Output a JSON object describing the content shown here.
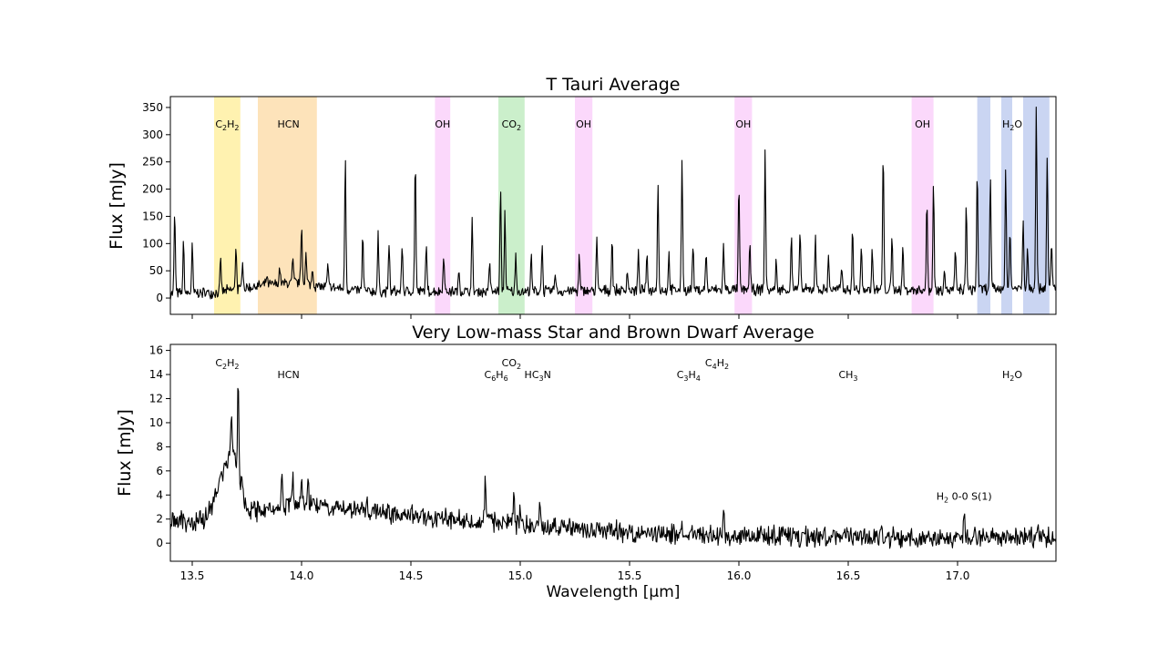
{
  "chart_data": [
    {
      "type": "line",
      "title": "T Tauri Average",
      "xlabel": "",
      "ylabel": "Flux [mJy]",
      "xlim": [
        13.4,
        17.45
      ],
      "ylim": [
        -30,
        370
      ],
      "yticks": [
        0,
        50,
        100,
        150,
        200,
        250,
        300,
        350
      ],
      "grid": false,
      "series": [
        {
          "color": "#000000",
          "baseline": [
            [
              13.4,
              8
            ],
            [
              13.6,
              10
            ],
            [
              13.7,
              15
            ],
            [
              13.8,
              22
            ],
            [
              14.0,
              30
            ],
            [
              14.07,
              22
            ],
            [
              14.3,
              12
            ],
            [
              15.0,
              12
            ],
            [
              15.5,
              14
            ],
            [
              16.0,
              15
            ],
            [
              16.5,
              15
            ],
            [
              17.0,
              15
            ],
            [
              17.45,
              20
            ]
          ],
          "peaks": [
            [
              13.42,
              160
            ],
            [
              13.46,
              100
            ],
            [
              13.5,
              95
            ],
            [
              13.63,
              70
            ],
            [
              13.7,
              100
            ],
            [
              13.73,
              70
            ],
            [
              13.84,
              40
            ],
            [
              13.9,
              55
            ],
            [
              13.96,
              70
            ],
            [
              14.0,
              135
            ],
            [
              14.02,
              80
            ],
            [
              14.05,
              55
            ],
            [
              14.12,
              60
            ],
            [
              14.2,
              260
            ],
            [
              14.28,
              115
            ],
            [
              14.35,
              115
            ],
            [
              14.4,
              100
            ],
            [
              14.46,
              100
            ],
            [
              14.52,
              260
            ],
            [
              14.57,
              100
            ],
            [
              14.65,
              85
            ],
            [
              14.72,
              50
            ],
            [
              14.78,
              140
            ],
            [
              14.86,
              70
            ],
            [
              14.91,
              200
            ],
            [
              14.93,
              160
            ],
            [
              14.98,
              80
            ],
            [
              15.05,
              75
            ],
            [
              15.1,
              100
            ],
            [
              15.16,
              50
            ],
            [
              15.27,
              75
            ],
            [
              15.35,
              110
            ],
            [
              15.42,
              110
            ],
            [
              15.49,
              55
            ],
            [
              15.54,
              80
            ],
            [
              15.58,
              80
            ],
            [
              15.63,
              220
            ],
            [
              15.68,
              80
            ],
            [
              15.74,
              260
            ],
            [
              15.79,
              100
            ],
            [
              15.85,
              85
            ],
            [
              15.93,
              100
            ],
            [
              16.0,
              210
            ],
            [
              16.05,
              100
            ],
            [
              16.12,
              270
            ],
            [
              16.17,
              70
            ],
            [
              16.24,
              115
            ],
            [
              16.28,
              130
            ],
            [
              16.35,
              120
            ],
            [
              16.41,
              80
            ],
            [
              16.47,
              60
            ],
            [
              16.52,
              125
            ],
            [
              16.56,
              90
            ],
            [
              16.61,
              90
            ],
            [
              16.66,
              270
            ],
            [
              16.7,
              110
            ],
            [
              16.75,
              95
            ],
            [
              16.86,
              180
            ],
            [
              16.89,
              210
            ],
            [
              16.94,
              60
            ],
            [
              16.99,
              85
            ],
            [
              17.04,
              170
            ],
            [
              17.09,
              240
            ],
            [
              17.15,
              230
            ],
            [
              17.22,
              240
            ],
            [
              17.24,
              130
            ],
            [
              17.3,
              145
            ],
            [
              17.32,
              95
            ],
            [
              17.36,
              360
            ],
            [
              17.41,
              260
            ],
            [
              17.43,
              100
            ]
          ]
        }
      ],
      "bands": [
        {
          "label": "C2H2",
          "x": [
            13.6,
            13.72
          ],
          "color": "#fff2b0"
        },
        {
          "label": "HCN",
          "x": [
            13.8,
            14.07
          ],
          "color": "#fde3ba"
        },
        {
          "label": "OH",
          "x": [
            14.61,
            14.68
          ],
          "color": "#fbd8fb"
        },
        {
          "label": "CO2",
          "x": [
            14.9,
            15.02
          ],
          "color": "#cbefcb"
        },
        {
          "label": "OH",
          "x": [
            15.25,
            15.33
          ],
          "color": "#fbd8fb"
        },
        {
          "label": "OH",
          "x": [
            15.98,
            16.06
          ],
          "color": "#fbd8fb"
        },
        {
          "label": "OH",
          "x": [
            16.79,
            16.89
          ],
          "color": "#fbd8fb"
        },
        {
          "label": "",
          "x": [
            17.09,
            17.15
          ],
          "color": "#cad5f2"
        },
        {
          "label": "H2O",
          "x": [
            17.2,
            17.25
          ],
          "color": "#cad5f2"
        },
        {
          "label": "",
          "x": [
            17.3,
            17.42
          ],
          "color": "#cad5f2"
        }
      ],
      "annotations": [
        {
          "text": "C2H2",
          "x": 13.66,
          "y": 320
        },
        {
          "text": "HCN",
          "x": 13.94,
          "y": 320
        },
        {
          "text": "OH",
          "x": 14.645,
          "y": 320
        },
        {
          "text": "CO2",
          "x": 14.96,
          "y": 320
        },
        {
          "text": "OH",
          "x": 15.29,
          "y": 320
        },
        {
          "text": "OH",
          "x": 16.02,
          "y": 320
        },
        {
          "text": "OH",
          "x": 16.84,
          "y": 320
        },
        {
          "text": "H2O",
          "x": 17.25,
          "y": 320
        }
      ]
    },
    {
      "type": "line",
      "title": "Very Low-mass Star and Brown Dwarf Average",
      "xlabel": "Wavelength [μm]",
      "ylabel": "Flux [mJy]",
      "xlim": [
        13.4,
        17.45
      ],
      "ylim": [
        -1.5,
        16.5
      ],
      "xticks": [
        "13.5",
        "14.0",
        "14.5",
        "15.0",
        "15.5",
        "16.0",
        "16.5",
        "17.0"
      ],
      "yticks": [
        0,
        2,
        4,
        6,
        8,
        10,
        12,
        14,
        16
      ],
      "grid": false,
      "series": [
        {
          "color": "#000000",
          "baseline": [
            [
              13.4,
              1.8
            ],
            [
              13.55,
              1.8
            ],
            [
              13.6,
              3.5
            ],
            [
              13.64,
              6
            ],
            [
              13.68,
              8
            ],
            [
              13.72,
              5
            ],
            [
              13.75,
              2.5
            ],
            [
              13.8,
              2.6
            ],
            [
              14.0,
              3.5
            ],
            [
              14.1,
              3.1
            ],
            [
              14.4,
              2.5
            ],
            [
              14.6,
              2.1
            ],
            [
              15.0,
              1.6
            ],
            [
              15.3,
              1.1
            ],
            [
              15.6,
              0.8
            ],
            [
              16.0,
              0.6
            ],
            [
              16.5,
              0.5
            ],
            [
              17.0,
              0.45
            ],
            [
              17.45,
              0.5
            ]
          ],
          "peaks": [
            [
              13.68,
              10.3
            ],
            [
              13.71,
              14.3
            ],
            [
              13.73,
              5
            ],
            [
              13.91,
              5.5
            ],
            [
              13.96,
              5.7
            ],
            [
              14.0,
              5.6
            ],
            [
              14.03,
              5.7
            ],
            [
              14.3,
              4
            ],
            [
              14.4,
              2.5
            ],
            [
              14.84,
              5.9
            ],
            [
              14.97,
              4.3
            ],
            [
              15.0,
              3
            ],
            [
              15.09,
              3.1
            ],
            [
              15.74,
              1.2
            ],
            [
              15.93,
              3.3
            ],
            [
              16.2,
              1.2
            ],
            [
              16.5,
              0.9
            ],
            [
              16.65,
              1.1
            ],
            [
              17.03,
              2.6
            ],
            [
              17.37,
              1.3
            ]
          ]
        }
      ],
      "annotations": [
        {
          "text": "C2H2",
          "x": 13.66,
          "y": 15.0
        },
        {
          "text": "HCN",
          "x": 13.94,
          "y": 14.0
        },
        {
          "text": "C6H6",
          "x": 14.89,
          "y": 14.0
        },
        {
          "text": "CO2",
          "x": 14.96,
          "y": 15.0
        },
        {
          "text": "HC3N",
          "x": 15.08,
          "y": 14.0
        },
        {
          "text": "C3H4",
          "x": 15.77,
          "y": 14.0
        },
        {
          "text": "C4H2",
          "x": 15.9,
          "y": 15.0
        },
        {
          "text": "CH3",
          "x": 16.5,
          "y": 14.0
        },
        {
          "text": "H2O",
          "x": 17.25,
          "y": 14.0
        },
        {
          "text": "H2 0-0 S(1)",
          "x": 17.03,
          "y": 3.9
        }
      ]
    }
  ]
}
